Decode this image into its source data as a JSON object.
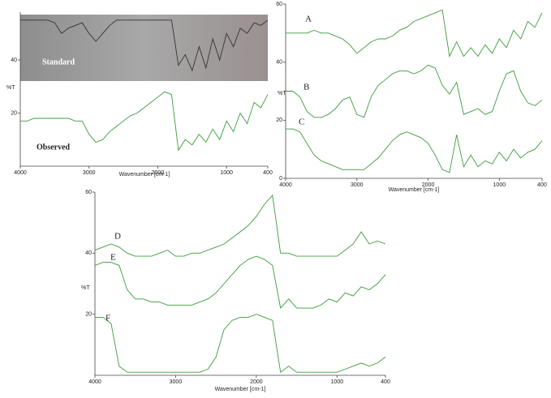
{
  "chart_data": [
    {
      "type": "line",
      "xlabel": "Wavenumber [cm-1]",
      "ylabel": "%T",
      "x": [
        4000,
        3900,
        3800,
        3700,
        3600,
        3500,
        3400,
        3300,
        3200,
        3100,
        3000,
        2900,
        2800,
        2700,
        2600,
        2500,
        2400,
        2300,
        2200,
        2100,
        2000,
        1900,
        1800,
        1700,
        1600,
        1500,
        1400,
        1300,
        1200,
        1100,
        1000,
        900,
        800,
        700,
        600,
        500,
        400
      ],
      "xlim": [
        4000,
        400
      ],
      "ylim": [
        0,
        58
      ],
      "xticks": [
        4000,
        3000,
        2000,
        1000,
        400
      ],
      "yticks": [
        20,
        40
      ],
      "series": [
        {
          "name": "Standard",
          "color": "#333333",
          "values": [
            55,
            55,
            55,
            55,
            55,
            54,
            50,
            52,
            53,
            54,
            50,
            47,
            50,
            53,
            55,
            55,
            55,
            55,
            55,
            55,
            55,
            55,
            55,
            38,
            42,
            36,
            45,
            37,
            48,
            40,
            50,
            45,
            52,
            50,
            54,
            53,
            55
          ]
        },
        {
          "name": "Observed",
          "color": "#3c9b3c",
          "values": [
            17,
            17,
            18,
            18,
            18,
            18,
            18,
            18,
            17,
            17,
            12,
            9,
            10,
            13,
            15,
            17,
            19,
            20,
            22,
            24,
            26,
            28,
            27,
            6,
            10,
            8,
            12,
            9,
            14,
            10,
            17,
            13,
            20,
            16,
            24,
            22,
            27
          ]
        }
      ]
    },
    {
      "type": "line",
      "xlabel": "Wavenumber [cm-1]",
      "ylabel": "%T",
      "x": [
        4000,
        3900,
        3800,
        3700,
        3600,
        3500,
        3400,
        3300,
        3200,
        3100,
        3000,
        2900,
        2800,
        2700,
        2600,
        2500,
        2400,
        2300,
        2200,
        2100,
        2000,
        1900,
        1800,
        1700,
        1600,
        1500,
        1400,
        1300,
        1200,
        1100,
        1000,
        900,
        800,
        700,
        600,
        500,
        400
      ],
      "xlim": [
        4000,
        400
      ],
      "ylim": [
        0,
        60
      ],
      "xticks": [
        4000,
        3000,
        2000,
        1000,
        400
      ],
      "yticks": [
        0,
        20,
        40,
        60
      ],
      "series": [
        {
          "name": "A",
          "color": "#3c9b3c",
          "values": [
            50,
            50,
            50,
            50,
            51,
            50,
            50,
            49,
            48,
            46,
            43,
            45,
            47,
            48,
            48,
            49,
            51,
            52,
            54,
            55,
            56,
            57,
            58,
            42,
            47,
            42,
            45,
            42,
            46,
            43,
            48,
            45,
            51,
            48,
            54,
            52,
            57
          ]
        },
        {
          "name": "B",
          "color": "#3c9b3c",
          "values": [
            30,
            30,
            28,
            23,
            21,
            21,
            22,
            24,
            27,
            28,
            22,
            21,
            28,
            32,
            34,
            36,
            37,
            37,
            36,
            37,
            39,
            38,
            32,
            29,
            33,
            22,
            23,
            24,
            22,
            23,
            30,
            36,
            37,
            30,
            26,
            25,
            27
          ]
        },
        {
          "name": "C",
          "color": "#3c9b3c",
          "values": [
            17,
            17,
            16,
            12,
            8,
            6,
            5,
            4,
            3,
            3,
            3,
            3,
            5,
            7,
            10,
            13,
            15,
            16,
            15,
            14,
            12,
            8,
            3,
            2,
            15,
            4,
            8,
            4,
            6,
            5,
            9,
            6,
            10,
            7,
            9,
            10,
            13
          ]
        }
      ]
    },
    {
      "type": "line",
      "xlabel": "Wavenumber [cm-1]",
      "ylabel": "%T",
      "x": [
        4000,
        3900,
        3800,
        3700,
        3600,
        3500,
        3400,
        3300,
        3200,
        3100,
        3000,
        2900,
        2800,
        2700,
        2600,
        2500,
        2400,
        2300,
        2200,
        2100,
        2000,
        1900,
        1800,
        1700,
        1600,
        1500,
        1400,
        1300,
        1200,
        1100,
        1000,
        900,
        800,
        700,
        600,
        500,
        400
      ],
      "xlim": [
        4000,
        400
      ],
      "ylim": [
        0,
        60
      ],
      "xticks": [
        4000,
        3000,
        2000,
        1000,
        400
      ],
      "yticks": [
        20,
        40,
        60
      ],
      "series": [
        {
          "name": "D",
          "color": "#3c9b3c",
          "values": [
            41,
            42,
            43,
            42,
            40,
            39,
            39,
            39,
            40,
            41,
            39,
            39,
            40,
            40,
            41,
            42,
            43,
            45,
            47,
            49,
            52,
            56,
            59,
            40,
            40,
            39,
            39,
            39,
            39,
            39,
            39,
            41,
            43,
            47,
            43,
            44,
            43
          ]
        },
        {
          "name": "E",
          "color": "#3c9b3c",
          "values": [
            36,
            37,
            37,
            36,
            28,
            25,
            25,
            24,
            24,
            23,
            23,
            23,
            23,
            24,
            25,
            27,
            30,
            33,
            36,
            38,
            39,
            38,
            36,
            22,
            25,
            22,
            22,
            22,
            23,
            25,
            24,
            27,
            26,
            29,
            28,
            30,
            33
          ]
        },
        {
          "name": "F",
          "color": "#3c9b3c",
          "values": [
            19,
            19,
            17,
            3,
            1,
            1,
            1,
            1,
            1,
            1,
            1,
            1,
            1,
            1,
            2,
            6,
            15,
            18,
            19,
            19,
            20,
            19,
            18,
            1,
            3,
            1,
            1,
            1,
            1,
            1,
            1,
            2,
            3,
            4,
            3,
            4,
            6
          ]
        }
      ]
    }
  ]
}
